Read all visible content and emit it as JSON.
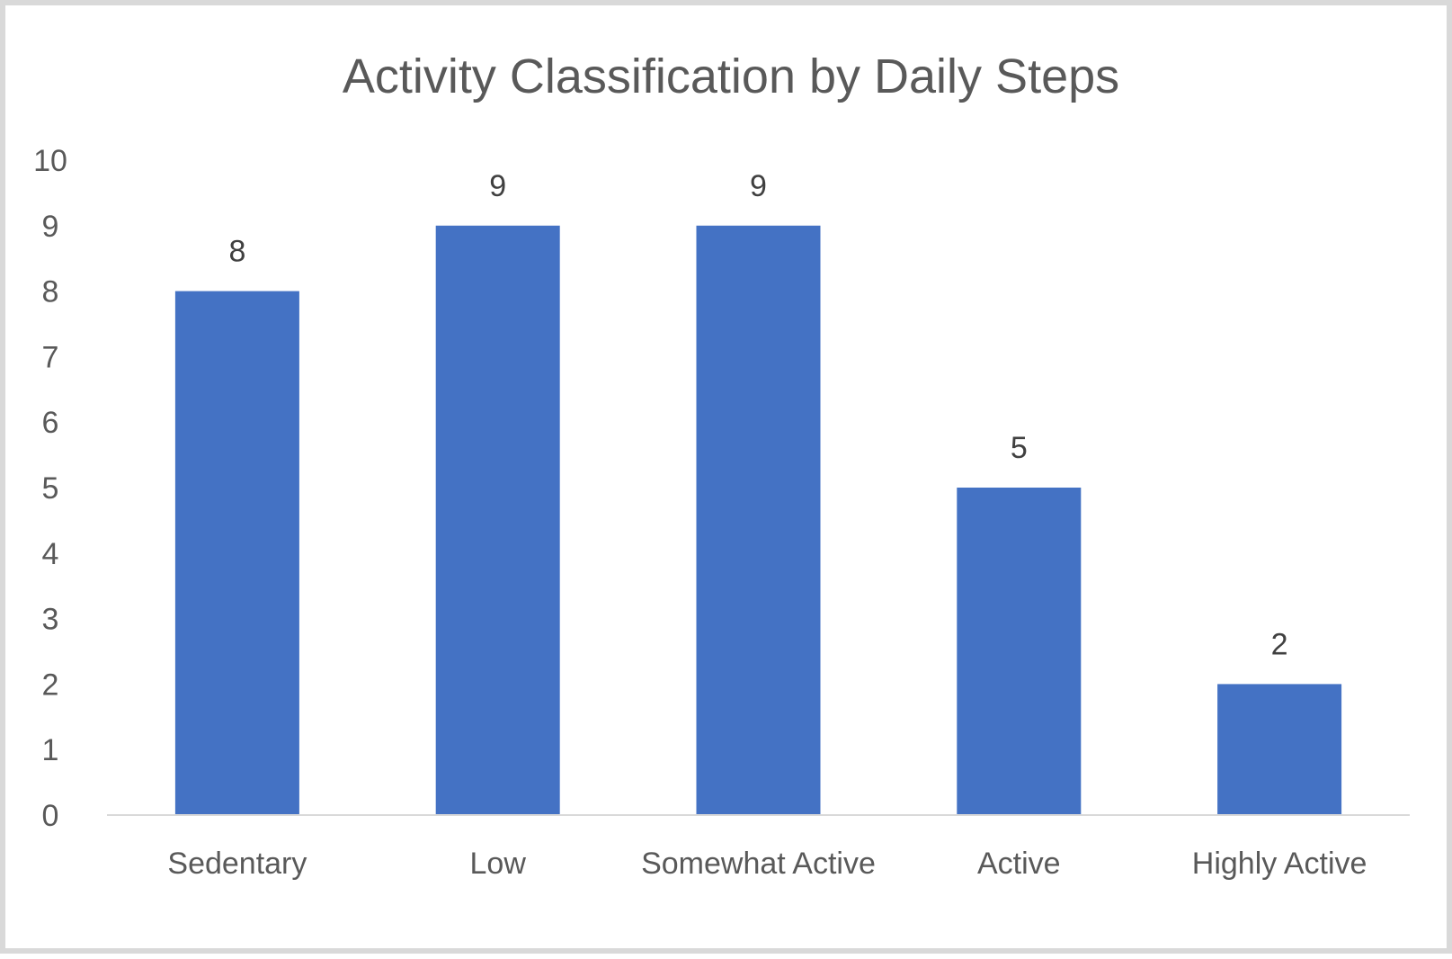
{
  "chart_data": {
    "type": "bar",
    "title": "Activity Classification by Daily Steps",
    "xlabel": "",
    "ylabel": "",
    "categories": [
      "Sedentary",
      "Low",
      "Somewhat Active",
      "Active",
      "Highly Active"
    ],
    "values": [
      8,
      9,
      9,
      5,
      2
    ],
    "ylim": [
      0,
      10
    ],
    "yticks": [
      0,
      1,
      2,
      3,
      4,
      5,
      6,
      7,
      8,
      9,
      10
    ],
    "grid": false,
    "legend": "none",
    "data_labels": true,
    "bar_color": "#4472C4"
  }
}
